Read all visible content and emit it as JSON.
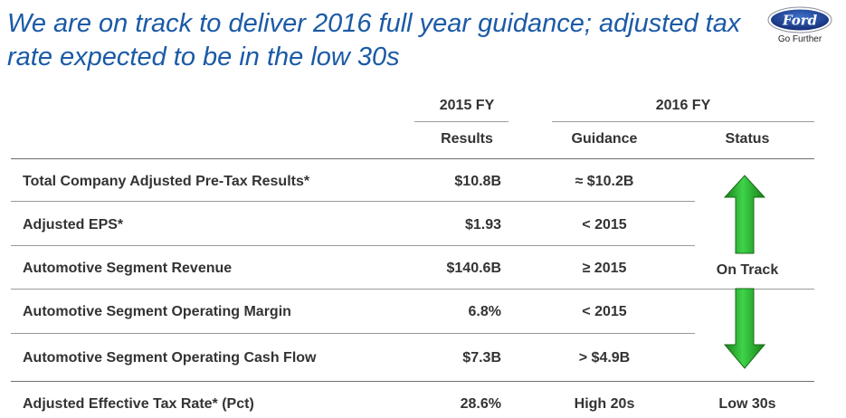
{
  "slide": {
    "title": "We are on track to deliver 2016 full year guidance; adjusted tax rate expected to be in the low 30s"
  },
  "logo": {
    "brand": "Ford",
    "tagline": "Go Further",
    "color": "#1c3f94"
  },
  "table": {
    "group_headers": {
      "fy2015": "2015 FY",
      "fy2016": "2016 FY"
    },
    "column_headers": {
      "results": "Results",
      "guidance": "Guidance",
      "status": "Status"
    },
    "rows": [
      {
        "metric": "Total Company Adjusted Pre-Tax Results*",
        "results": "$10.8B",
        "guidance": "≈ $10.2B"
      },
      {
        "metric": "Adjusted EPS*",
        "results": "$1.93",
        "guidance": "< 2015"
      },
      {
        "metric": "Automotive Segment Revenue",
        "results": "$140.6B",
        "guidance": "≥ 2015"
      },
      {
        "metric": "Automotive Segment Operating Margin",
        "results": "6.8%",
        "guidance": "< 2015"
      },
      {
        "metric": "Automotive Segment Operating Cash Flow",
        "results": "$7.3B",
        "guidance": "> $4.9B"
      },
      {
        "metric": "Adjusted Effective Tax Rate* (Pct)",
        "results": "28.6%",
        "guidance": "High 20s",
        "status": "Low 30s"
      }
    ],
    "merged_status": "On Track"
  },
  "colors": {
    "title": "#1b5aa6",
    "arrow_green": "#1fae2c",
    "arrow_dark": "#1a6a1a"
  }
}
